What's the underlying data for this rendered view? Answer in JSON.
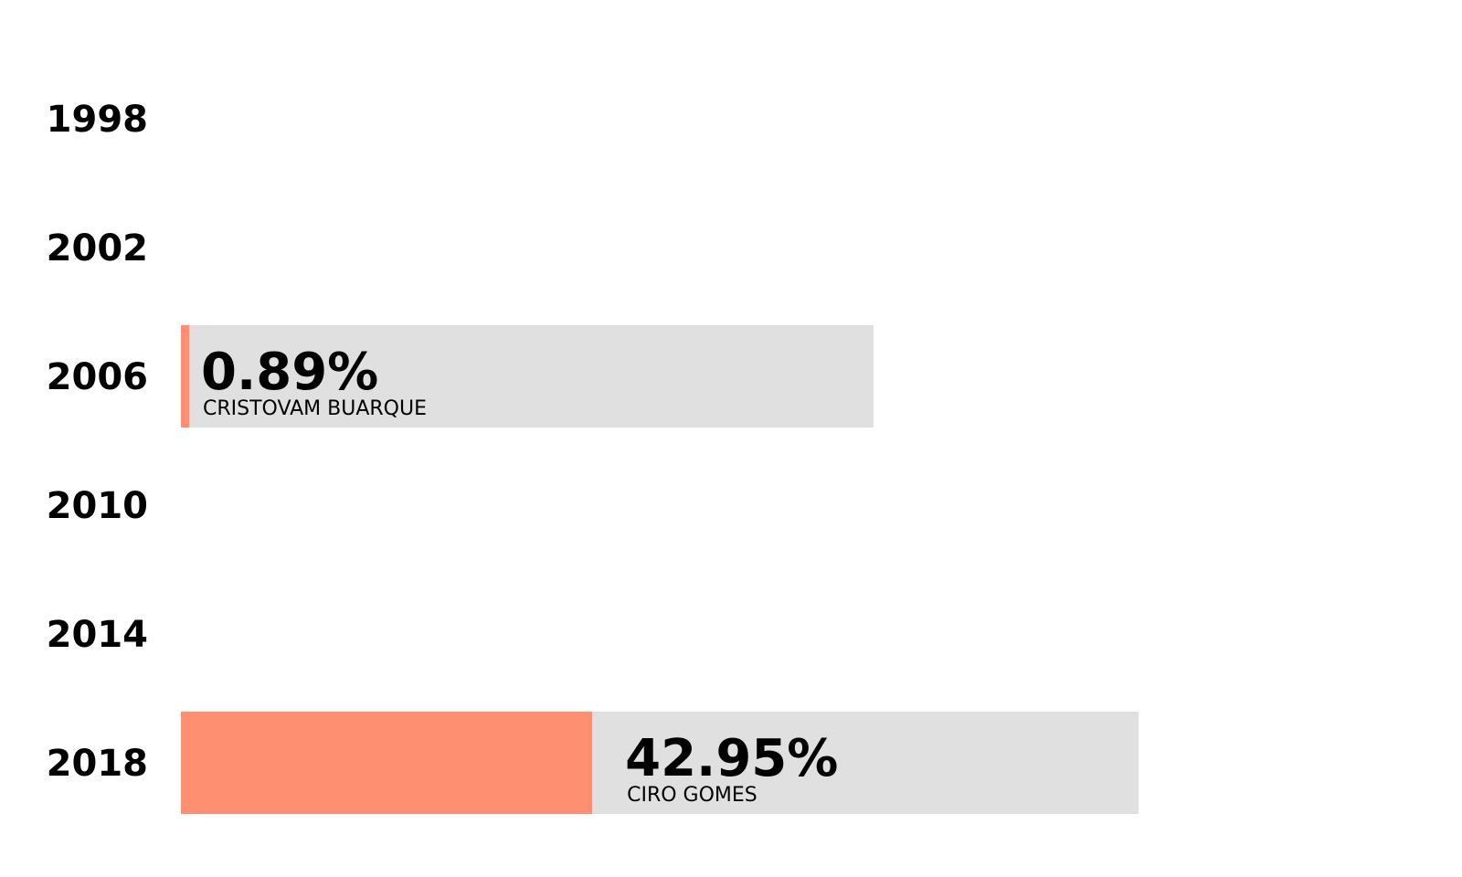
{
  "chart_data": {
    "type": "bar",
    "categories": [
      "1998",
      "2002",
      "2006",
      "2010",
      "2014",
      "2018"
    ],
    "ylim": [
      0,
      100
    ],
    "colors": {
      "fill": "#ff8f70",
      "track": "#e0e0e0"
    },
    "bars": [
      {
        "year": "2006",
        "value": 0.89,
        "label": "0.89%",
        "name": "CRISTOVAM BUARQUE"
      },
      {
        "year": "2018",
        "value": 42.95,
        "label": "42.95%",
        "name": "CIRO GOMES"
      }
    ]
  }
}
